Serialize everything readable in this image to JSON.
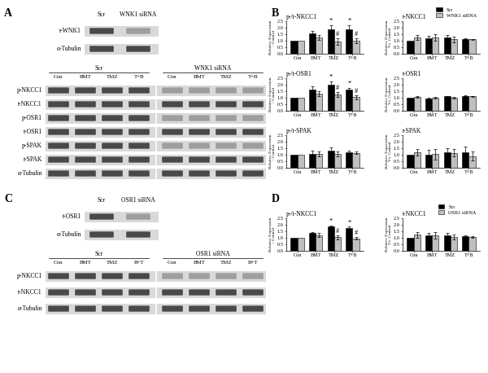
{
  "panels": {
    "A": {
      "label": "A",
      "small_blot": {
        "lanes": [
          "Scr",
          "WNK1 siRNA"
        ],
        "rows": [
          "t-WNK1",
          "α-Tubulin"
        ]
      },
      "main_blot": {
        "groups": [
          "Scr",
          "WNK1 siRNA"
        ],
        "lanes": [
          "Con",
          "BMT",
          "TMZ",
          "T+B"
        ],
        "rows": [
          "p-NKCC1",
          "t-NKCC1",
          "p-OSR1",
          "t-OSR1",
          "p-SPAK",
          "t-SPAK",
          "α-Tubulin"
        ]
      }
    },
    "B": {
      "label": "B"
    },
    "C": {
      "label": "C",
      "small_blot": {
        "lanes": [
          "Scr",
          "OSR1 siRNA"
        ],
        "rows": [
          "t-OSR1",
          "α-Tubulin"
        ]
      },
      "main_blot": {
        "groups": [
          "Scr",
          "OSR1 siRNA"
        ],
        "lanes": [
          "Con",
          "BMT",
          "TMZ",
          "B+T"
        ],
        "rows": [
          "p-NKCC1",
          "t-NKCC1",
          "α-Tubulin"
        ]
      }
    },
    "D": {
      "label": "D"
    }
  },
  "chart_data": [
    {
      "type": "bar",
      "title": "p-/t-NKCC1",
      "y_label": "Relative Expression / Control",
      "categories": [
        "Con",
        "BMT",
        "TMZ",
        "T+B"
      ],
      "series": [
        {
          "name": "Scr",
          "color": "#000000",
          "values": [
            1.0,
            1.55,
            1.9,
            1.85
          ],
          "errors": [
            0,
            0.2,
            0.3,
            0.35
          ]
        },
        {
          "name": "WNK1 siRNA",
          "color": "#bfbfbf",
          "values": [
            1.0,
            1.25,
            0.95,
            1.0
          ],
          "errors": [
            0,
            0.2,
            0.25,
            0.2
          ]
        }
      ],
      "ylim": [
        0,
        2.5
      ],
      "yticks": [
        {
          "value": 0,
          "label": "0.0"
        },
        0.5,
        {
          "value": 1,
          "label": "1.0"
        },
        1.5,
        {
          "value": 2,
          "label": "2.0"
        },
        2.5
      ],
      "annotations": [
        {
          "series": "Scr",
          "category": "TMZ",
          "text": "*"
        },
        {
          "series": "Scr",
          "category": "T+B",
          "text": "*"
        },
        {
          "series": "WNK1 siRNA",
          "category": "TMZ",
          "text": "#"
        },
        {
          "series": "WNK1 siRNA",
          "category": "T+B",
          "text": "#"
        }
      ]
    },
    {
      "type": "bar",
      "title": "t-NKCC1",
      "y_label": "Relative Expression Vs. Control",
      "categories": [
        "Con",
        "BMT",
        "TMZ",
        "T+B"
      ],
      "series": [
        {
          "name": "Scr",
          "color": "#000000",
          "values": [
            1.0,
            1.2,
            1.25,
            1.15
          ],
          "errors": [
            0,
            0.2,
            0.2,
            0.05
          ]
        },
        {
          "name": "WNK1 siRNA",
          "color": "#bfbfbf",
          "values": [
            1.25,
            1.25,
            1.1,
            1.1
          ],
          "errors": [
            0.2,
            0.25,
            0.2,
            0.05
          ]
        }
      ],
      "ylim": [
        0,
        2.5
      ],
      "yticks": [
        {
          "value": 0,
          "label": "0.0"
        },
        0.5,
        {
          "value": 1,
          "label": "1.0"
        },
        1.5,
        {
          "value": 2,
          "label": "2.0"
        },
        2.5
      ],
      "legend": "lower right"
    },
    {
      "type": "bar",
      "title": "p-/t-OSR1",
      "y_label": "Relative Expression / Control",
      "categories": [
        "Con",
        "BMT",
        "TMZ",
        "T+B"
      ],
      "series": [
        {
          "name": "Scr",
          "color": "#000000",
          "values": [
            1.0,
            1.65,
            2.0,
            1.65
          ],
          "errors": [
            0,
            0.2,
            0.25,
            0.1
          ]
        },
        {
          "name": "WNK1 siRNA",
          "color": "#bfbfbf",
          "values": [
            1.0,
            1.3,
            1.25,
            1.05
          ],
          "errors": [
            0,
            0.2,
            0.2,
            0.15
          ]
        }
      ],
      "ylim": [
        0,
        2.5
      ],
      "yticks": [
        {
          "value": 0,
          "label": "0.0"
        },
        0.5,
        {
          "value": 1,
          "label": "1.0"
        },
        1.5,
        {
          "value": 2,
          "label": "2.0"
        },
        2.5
      ],
      "annotations": [
        {
          "series": "Scr",
          "category": "TMZ",
          "text": "*"
        },
        {
          "series": "Scr",
          "category": "T+B",
          "text": "*"
        },
        {
          "series": "WNK1 siRNA",
          "category": "TMZ",
          "text": "#"
        },
        {
          "series": "WNK1 siRNA",
          "category": "T+B",
          "text": "#"
        }
      ]
    },
    {
      "type": "bar",
      "title": "t-OSR1",
      "y_label": "Relative Expression Vs. Control",
      "categories": [
        "Con",
        "BMT",
        "TMZ",
        "T+B"
      ],
      "series": [
        {
          "name": "Scr",
          "color": "#000000",
          "values": [
            1.0,
            0.95,
            1.1,
            1.15
          ],
          "errors": [
            0,
            0.05,
            0.05,
            0.05
          ]
        },
        {
          "name": "WNK1 siRNA",
          "color": "#bfbfbf",
          "values": [
            1.05,
            1.0,
            1.0,
            1.1
          ],
          "errors": [
            0.05,
            0.05,
            0.05,
            0.05
          ]
        }
      ],
      "ylim": [
        0,
        2.5
      ],
      "yticks": [
        {
          "value": 0,
          "label": "0.0"
        },
        0.5,
        {
          "value": 1,
          "label": "1.0"
        },
        1.5,
        {
          "value": 2,
          "label": "2.0"
        },
        2.5
      ]
    },
    {
      "type": "bar",
      "title": "p-/t-SPAK",
      "y_label": "Relative Expression / Control",
      "categories": [
        "Con",
        "BMT",
        "TMZ",
        "T+B"
      ],
      "series": [
        {
          "name": "Scr",
          "color": "#000000",
          "values": [
            1.0,
            1.05,
            1.3,
            1.2
          ],
          "errors": [
            0,
            0.25,
            0.25,
            0.1
          ]
        },
        {
          "name": "WNK1 siRNA",
          "color": "#bfbfbf",
          "values": [
            1.0,
            1.05,
            1.05,
            1.15
          ],
          "errors": [
            0,
            0.2,
            0.2,
            0.1
          ]
        }
      ],
      "ylim": [
        0,
        2.5
      ],
      "yticks": [
        {
          "value": 0,
          "label": "0.0"
        },
        0.5,
        {
          "value": 1,
          "label": "1.0"
        },
        1.5,
        {
          "value": 2,
          "label": "2.0"
        },
        2.5
      ]
    },
    {
      "type": "bar",
      "title": "t-SPAK",
      "y_label": "Relative Expression Vs. Control",
      "categories": [
        "Con",
        "BMT",
        "TMZ",
        "T+B"
      ],
      "series": [
        {
          "name": "Scr",
          "color": "#000000",
          "values": [
            1.0,
            1.0,
            1.2,
            1.2
          ],
          "errors": [
            0,
            0.35,
            0.3,
            0.45
          ]
        },
        {
          "name": "WNK1 siRNA",
          "color": "#bfbfbf",
          "values": [
            1.2,
            1.05,
            1.15,
            0.9
          ],
          "errors": [
            0.25,
            0.4,
            0.3,
            0.35
          ]
        }
      ],
      "ylim": [
        0,
        2.5
      ],
      "yticks": [
        {
          "value": 0,
          "label": "0.0"
        },
        0.5,
        {
          "value": 1,
          "label": "1.0"
        },
        1.5,
        {
          "value": 2,
          "label": "2.0"
        },
        2.5
      ]
    },
    {
      "type": "bar",
      "title": "p-/t-NKCC1",
      "y_label": "Relative Expression / Control",
      "categories": [
        "Con",
        "BMT",
        "TMZ",
        "T+B"
      ],
      "series": [
        {
          "name": "Scr",
          "color": "#000000",
          "values": [
            1.0,
            1.35,
            1.85,
            1.75
          ],
          "errors": [
            0,
            0.1,
            0.1,
            0.1
          ]
        },
        {
          "name": "OSR1 siRNA",
          "color": "#bfbfbf",
          "values": [
            1.0,
            1.2,
            1.05,
            0.95
          ],
          "errors": [
            0,
            0.15,
            0.15,
            0.1
          ]
        }
      ],
      "ylim": [
        0,
        2.5
      ],
      "yticks": [
        {
          "value": 0,
          "label": "0.0"
        },
        0.5,
        {
          "value": 1,
          "label": "1.0"
        },
        1.5,
        {
          "value": 2,
          "label": "2.0"
        },
        2.5
      ],
      "annotations": [
        {
          "series": "Scr",
          "category": "TMZ",
          "text": "*"
        },
        {
          "series": "Scr",
          "category": "T+B",
          "text": "*"
        },
        {
          "series": "OSR1 siRNA",
          "category": "TMZ",
          "text": "#"
        },
        {
          "series": "OSR1 siRNA",
          "category": "T+B",
          "text": "#"
        }
      ]
    },
    {
      "type": "bar",
      "title": "t-NKCC1",
      "y_label": "Relative Expression Vs. Control",
      "categories": [
        "Con",
        "BMT",
        "TMZ",
        "T+B"
      ],
      "series": [
        {
          "name": "Scr",
          "color": "#000000",
          "values": [
            1.0,
            1.2,
            1.2,
            1.12
          ],
          "errors": [
            0,
            0.2,
            0.2,
            0.05
          ]
        },
        {
          "name": "OSR1 siRNA",
          "color": "#bfbfbf",
          "values": [
            1.22,
            1.2,
            1.08,
            1.08
          ],
          "errors": [
            0.2,
            0.25,
            0.2,
            0.05
          ]
        }
      ],
      "ylim": [
        0,
        2.5
      ],
      "yticks": [
        {
          "value": 0,
          "label": "0.0"
        },
        0.5,
        {
          "value": 1,
          "label": "1.0"
        },
        1.5,
        {
          "value": 2,
          "label": "2.0"
        },
        2.5
      ],
      "legend": "lower right"
    }
  ]
}
